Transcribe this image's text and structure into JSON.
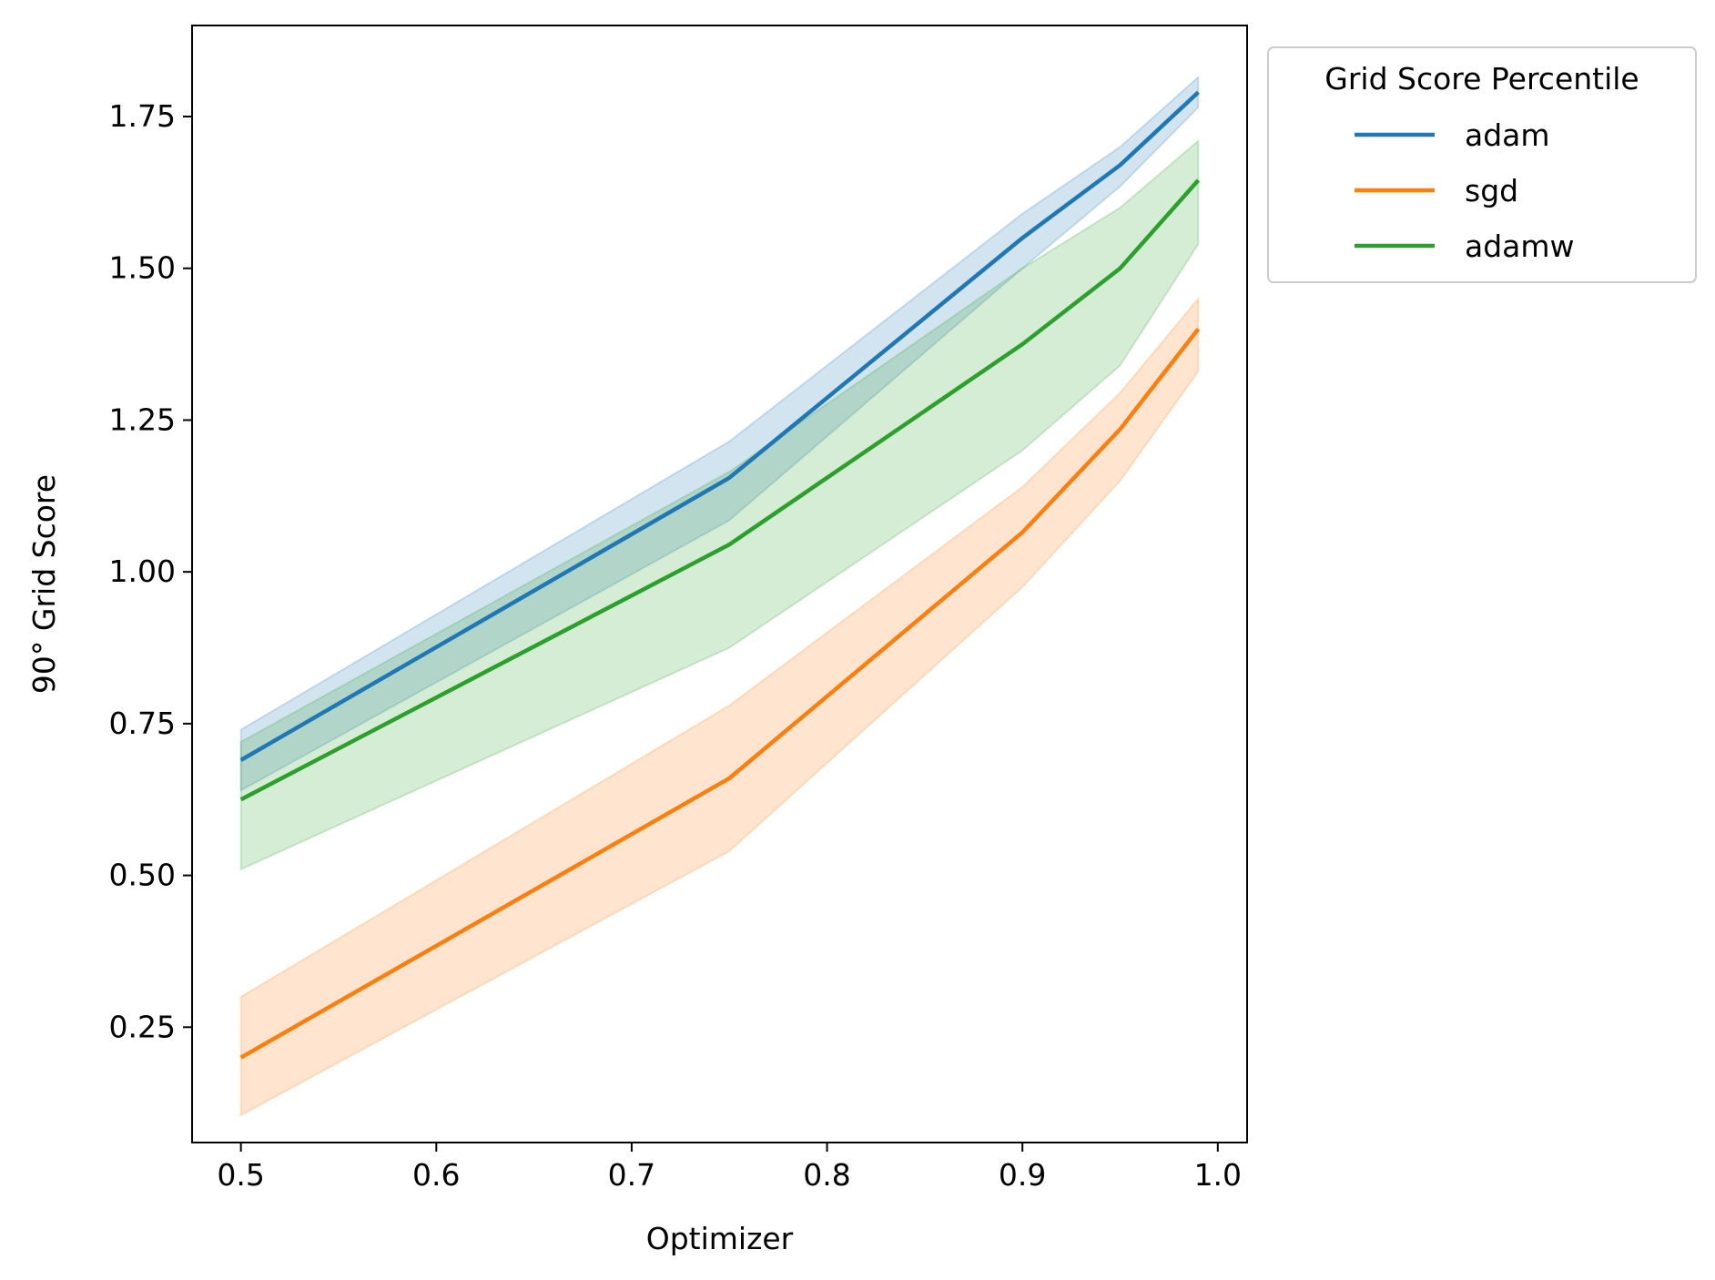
{
  "chart_data": {
    "type": "line",
    "xlabel": "Optimizer",
    "ylabel": "90° Grid Score",
    "xlim": [
      0.475,
      1.015
    ],
    "ylim": [
      0.06,
      1.9
    ],
    "xticks": [
      0.5,
      0.6,
      0.7,
      0.8,
      0.9,
      1.0
    ],
    "xtick_labels": [
      "0.5",
      "0.6",
      "0.7",
      "0.8",
      "0.9",
      "1.0"
    ],
    "yticks": [
      0.25,
      0.5,
      0.75,
      1.0,
      1.25,
      1.5,
      1.75
    ],
    "ytick_labels": [
      "0.25",
      "0.50",
      "0.75",
      "1.00",
      "1.25",
      "1.50",
      "1.75"
    ],
    "grid": false,
    "legend": {
      "title": "Grid Score Percentile",
      "placement": "outside-top-right"
    },
    "x": [
      0.5,
      0.75,
      0.9,
      0.95,
      0.99
    ],
    "series": [
      {
        "name": "adam",
        "color": "#1f77b4",
        "values": [
          0.69,
          1.155,
          1.55,
          1.67,
          1.79
        ],
        "lower": [
          0.64,
          1.085,
          1.5,
          1.635,
          1.765
        ],
        "upper": [
          0.74,
          1.215,
          1.59,
          1.7,
          1.815
        ]
      },
      {
        "name": "sgd",
        "color": "#ff7f0e",
        "values": [
          0.2,
          0.66,
          1.065,
          1.235,
          1.4
        ],
        "lower": [
          0.105,
          0.54,
          0.975,
          1.15,
          1.33
        ],
        "upper": [
          0.3,
          0.78,
          1.14,
          1.295,
          1.45
        ]
      },
      {
        "name": "adamw",
        "color": "#2ca02c",
        "values": [
          0.625,
          1.045,
          1.375,
          1.5,
          1.645
        ],
        "lower": [
          0.51,
          0.875,
          1.2,
          1.34,
          1.54
        ],
        "upper": [
          0.72,
          1.165,
          1.5,
          1.6,
          1.71
        ]
      }
    ]
  }
}
